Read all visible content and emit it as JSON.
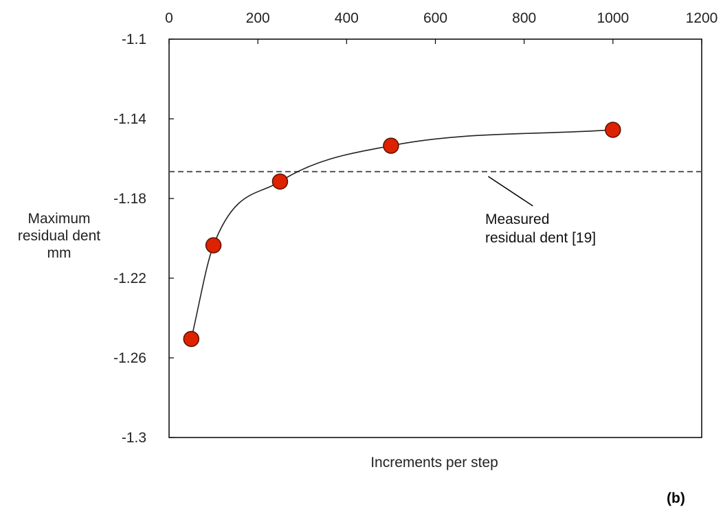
{
  "chart_data": {
    "type": "scatter",
    "panel_label": "(b)",
    "xlabel": "Increments per step",
    "ylabel_lines": [
      "Maximum",
      "residual dent",
      "mm"
    ],
    "xlim": [
      0,
      1200
    ],
    "ylim": [
      -1.3,
      -1.1
    ],
    "x_ticks": [
      0,
      200,
      400,
      600,
      800,
      1000,
      1200
    ],
    "x_tick_labels": [
      "0",
      "200",
      "400",
      "600",
      "800",
      "1000",
      "1200"
    ],
    "x_axis_position": "top",
    "y_ticks": [
      -1.1,
      -1.14,
      -1.18,
      -1.22,
      -1.26,
      -1.3
    ],
    "y_tick_labels": [
      "-1.1",
      "-1.14",
      "-1.18",
      "-1.22",
      "-1.26",
      "-1.3"
    ],
    "grid": false,
    "series": [
      {
        "x": [
          50,
          100,
          250,
          500,
          1000
        ],
        "y": [
          -1.2505,
          -1.2035,
          -1.1715,
          -1.1535,
          -1.1455
        ],
        "marker": "circle",
        "color": "#dd2200",
        "edge_color": "#5a1000",
        "line": "smooth",
        "line_color": "#222222"
      }
    ],
    "reference_line": {
      "y": -1.1665,
      "style": "dashed",
      "color": "#555555"
    },
    "annotation": {
      "lines": [
        "Measured",
        "residual dent [19]"
      ],
      "points_to_x": 750
    }
  }
}
